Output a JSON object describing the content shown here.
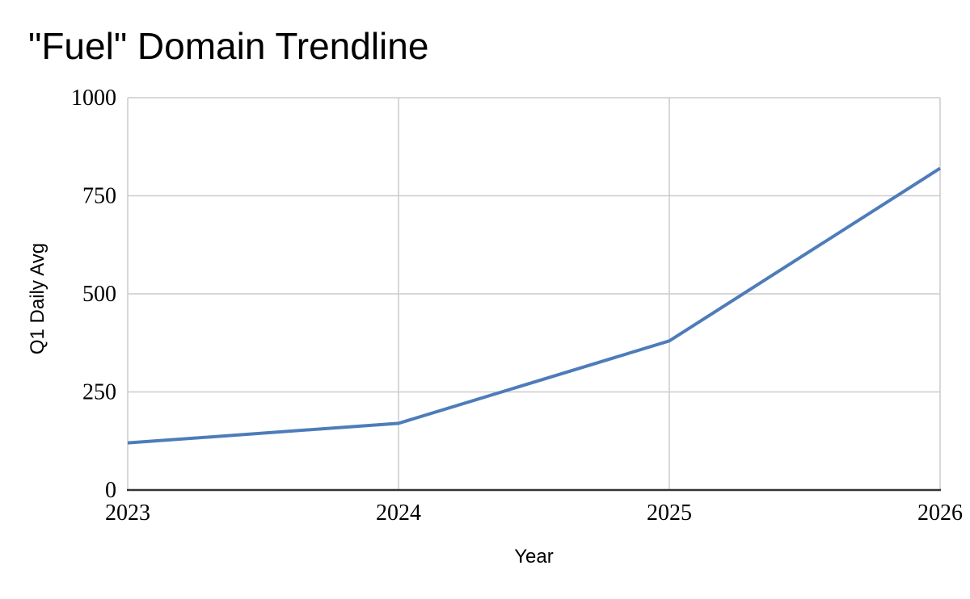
{
  "chart_data": {
    "type": "line",
    "title": "\"Fuel\" Domain Trendline",
    "xlabel": "Year",
    "ylabel": "Q1 Daily Avg",
    "categories": [
      "2023",
      "2024",
      "2025",
      "2026"
    ],
    "series": [
      {
        "name": "Q1 Daily Avg",
        "values": [
          120,
          170,
          380,
          820
        ]
      }
    ],
    "yticks": [
      0,
      250,
      500,
      750,
      1000
    ],
    "ylim": [
      0,
      1000
    ],
    "grid": true,
    "legend_position": "none",
    "colors": {
      "line": "#4e7cba",
      "grid": "#cccccc",
      "axis": "#333333",
      "text": "#000000"
    }
  }
}
